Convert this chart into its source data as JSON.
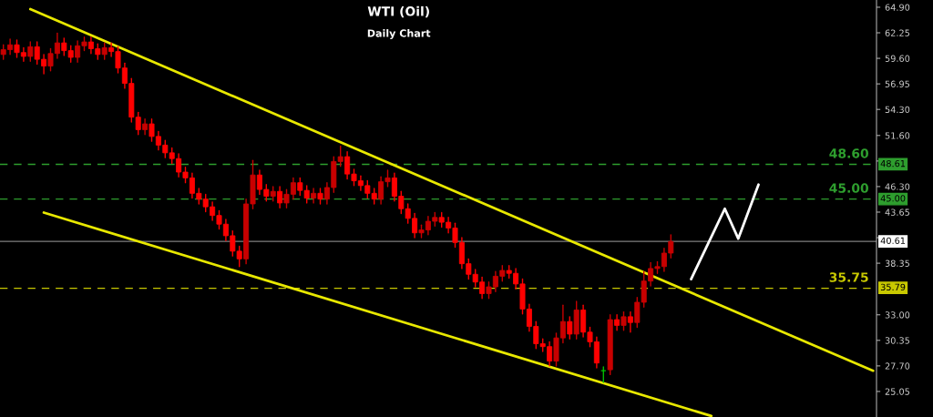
{
  "chart_data": {
    "type": "candlestick",
    "title": "WTI (Oil)",
    "subtitle": "Daily Chart",
    "categories": [
      null,
      null,
      null,
      null,
      null,
      null,
      null,
      null,
      null,
      null,
      null,
      null,
      null,
      null,
      null,
      null,
      null,
      null,
      null,
      null,
      null,
      null,
      null,
      null,
      null,
      null,
      null,
      null,
      null,
      null,
      null,
      null,
      null,
      null,
      null,
      null,
      null,
      null,
      null,
      null,
      null,
      null,
      null,
      null,
      null,
      null,
      null,
      null,
      null,
      null,
      null,
      null,
      null,
      null,
      null,
      null,
      null,
      null,
      null,
      null,
      null,
      null,
      null,
      null,
      null,
      null,
      null,
      null,
      null,
      null,
      null,
      null,
      null,
      null,
      null,
      null,
      null,
      null,
      null,
      null,
      null,
      null,
      null,
      null,
      null,
      null,
      null,
      null,
      null,
      null,
      null,
      null,
      null,
      null,
      null,
      null,
      null,
      null,
      null,
      null,
      null,
      null,
      null,
      null,
      null,
      null,
      null,
      null,
      null,
      null,
      null,
      null,
      null,
      null,
      null,
      null,
      null,
      null,
      null,
      null,
      null,
      null,
      null,
      null,
      null,
      null,
      null,
      null,
      null,
      null
    ],
    "ohlc": [
      [
        60.0,
        61.0,
        59.5,
        60.5
      ],
      [
        60.5,
        61.6,
        60.0,
        61.0
      ],
      [
        61.0,
        61.5,
        59.7,
        60.2
      ],
      [
        60.2,
        60.7,
        59.3,
        59.8
      ],
      [
        59.8,
        61.3,
        59.3,
        60.8
      ],
      [
        60.8,
        61.3,
        59.0,
        59.5
      ],
      [
        59.5,
        60.0,
        58.0,
        58.8
      ],
      [
        58.8,
        60.6,
        58.3,
        60.1
      ],
      [
        60.1,
        62.2,
        59.6,
        61.2
      ],
      [
        61.2,
        61.7,
        59.9,
        60.4
      ],
      [
        60.4,
        60.9,
        59.2,
        59.7
      ],
      [
        59.7,
        61.4,
        59.2,
        60.9
      ],
      [
        60.9,
        61.8,
        60.4,
        61.3
      ],
      [
        61.3,
        61.8,
        60.1,
        60.6
      ],
      [
        60.6,
        61.1,
        59.5,
        60.0
      ],
      [
        60.0,
        61.2,
        59.5,
        60.7
      ],
      [
        60.7,
        61.2,
        59.8,
        60.3
      ],
      [
        60.3,
        60.8,
        58.1,
        58.6
      ],
      [
        58.6,
        59.1,
        56.5,
        57.0
      ],
      [
        57.0,
        57.5,
        53.0,
        53.5
      ],
      [
        53.5,
        54.0,
        51.7,
        52.2
      ],
      [
        52.2,
        53.3,
        51.7,
        52.8
      ],
      [
        52.8,
        53.3,
        51.0,
        51.5
      ],
      [
        51.5,
        52.0,
        50.1,
        50.6
      ],
      [
        50.6,
        51.1,
        49.3,
        49.8
      ],
      [
        49.8,
        50.3,
        48.7,
        49.2
      ],
      [
        49.2,
        49.7,
        47.3,
        47.8
      ],
      [
        47.8,
        48.3,
        46.7,
        47.2
      ],
      [
        47.2,
        47.7,
        45.1,
        45.6
      ],
      [
        45.6,
        46.1,
        44.5,
        45.0
      ],
      [
        45.0,
        45.5,
        43.7,
        44.2
      ],
      [
        44.2,
        44.7,
        42.8,
        43.3
      ],
      [
        43.3,
        43.8,
        41.9,
        42.4
      ],
      [
        42.4,
        42.9,
        40.7,
        41.2
      ],
      [
        41.2,
        41.7,
        39.1,
        39.6
      ],
      [
        39.6,
        40.1,
        38.0,
        38.8
      ],
      [
        38.8,
        45.0,
        38.3,
        44.5
      ],
      [
        44.5,
        49.0,
        44.0,
        47.5
      ],
      [
        47.5,
        48.0,
        45.5,
        46.0
      ],
      [
        46.0,
        46.5,
        44.8,
        45.3
      ],
      [
        45.3,
        46.3,
        44.8,
        45.8
      ],
      [
        45.8,
        46.3,
        44.1,
        44.6
      ],
      [
        44.6,
        46.0,
        44.1,
        45.5
      ],
      [
        45.5,
        47.2,
        45.0,
        46.7
      ],
      [
        46.7,
        47.2,
        45.4,
        45.9
      ],
      [
        45.9,
        46.4,
        44.6,
        45.1
      ],
      [
        45.1,
        46.1,
        44.6,
        45.6
      ],
      [
        45.6,
        46.1,
        44.5,
        45.0
      ],
      [
        45.0,
        46.7,
        44.5,
        46.2
      ],
      [
        46.2,
        49.4,
        45.7,
        48.9
      ],
      [
        48.9,
        50.5,
        48.4,
        49.4
      ],
      [
        49.4,
        49.9,
        47.1,
        47.6
      ],
      [
        47.6,
        48.1,
        46.4,
        46.9
      ],
      [
        46.9,
        47.4,
        45.9,
        46.4
      ],
      [
        46.4,
        46.9,
        45.1,
        45.6
      ],
      [
        45.6,
        46.1,
        44.5,
        45.0
      ],
      [
        45.0,
        47.3,
        44.5,
        46.8
      ],
      [
        46.8,
        48.0,
        46.3,
        47.2
      ],
      [
        47.2,
        47.7,
        44.8,
        45.3
      ],
      [
        45.3,
        45.8,
        43.5,
        44.0
      ],
      [
        44.0,
        44.5,
        42.5,
        43.0
      ],
      [
        43.0,
        43.5,
        41.0,
        41.5
      ],
      [
        41.5,
        42.3,
        41.0,
        41.8
      ],
      [
        41.8,
        43.2,
        41.3,
        42.7
      ],
      [
        42.7,
        43.6,
        42.2,
        43.1
      ],
      [
        43.1,
        43.6,
        42.1,
        42.6
      ],
      [
        42.6,
        43.1,
        41.5,
        42.0
      ],
      [
        42.0,
        42.5,
        40.0,
        40.5
      ],
      [
        40.5,
        41.0,
        37.8,
        38.3
      ],
      [
        38.3,
        38.8,
        36.7,
        37.2
      ],
      [
        37.2,
        37.7,
        35.9,
        36.4
      ],
      [
        36.4,
        36.9,
        34.7,
        35.2
      ],
      [
        35.2,
        36.4,
        34.7,
        35.9
      ],
      [
        35.9,
        37.5,
        35.4,
        37.0
      ],
      [
        37.0,
        38.1,
        36.5,
        37.6
      ],
      [
        37.6,
        38.1,
        36.8,
        37.3
      ],
      [
        37.3,
        37.8,
        35.7,
        36.2
      ],
      [
        36.2,
        36.7,
        33.1,
        33.6
      ],
      [
        33.6,
        34.1,
        31.3,
        31.8
      ],
      [
        31.8,
        32.3,
        29.5,
        30.0
      ],
      [
        30.0,
        30.5,
        29.2,
        29.7
      ],
      [
        29.7,
        30.2,
        27.7,
        28.2
      ],
      [
        28.2,
        31.1,
        27.7,
        30.6
      ],
      [
        30.6,
        34.0,
        30.1,
        32.3
      ],
      [
        32.3,
        32.8,
        30.5,
        31.0
      ],
      [
        31.0,
        34.4,
        30.5,
        33.5
      ],
      [
        33.5,
        34.0,
        30.7,
        31.2
      ],
      [
        31.2,
        31.7,
        29.7,
        30.2
      ],
      [
        30.2,
        30.7,
        27.5,
        28.0
      ],
      [
        27.2,
        27.6,
        26.0,
        27.2
      ],
      [
        27.3,
        33.0,
        26.8,
        32.5
      ],
      [
        32.5,
        33.0,
        31.4,
        31.9
      ],
      [
        31.9,
        33.3,
        31.4,
        32.8
      ],
      [
        32.8,
        33.3,
        31.2,
        32.2
      ],
      [
        32.2,
        34.8,
        31.7,
        34.3
      ],
      [
        34.3,
        37.5,
        33.8,
        36.5
      ],
      [
        36.5,
        38.4,
        36.0,
        37.8
      ],
      [
        37.8,
        38.5,
        37.3,
        38.0
      ],
      [
        38.0,
        39.9,
        37.5,
        39.4
      ],
      [
        39.4,
        41.3,
        38.9,
        40.6
      ],
      null,
      null,
      null,
      null,
      null,
      null,
      null,
      null,
      null,
      null,
      null,
      null,
      null,
      null,
      null,
      null,
      null,
      null,
      null,
      null,
      null,
      null,
      null,
      null,
      null,
      null,
      null,
      null,
      null,
      null
    ],
    "colors": [
      "#c80000",
      "#c80000",
      "#ff0000",
      "#ff0000",
      "#c80000",
      "#ff0000",
      "#ff0000",
      "#c80000",
      "#c80000",
      "#ff0000",
      "#ff0000",
      "#c80000",
      "#c80000",
      "#ff0000",
      "#ff0000",
      "#c80000",
      "#ff0000",
      "#ff0000",
      "#ff0000",
      "#ff0000",
      "#ff0000",
      "#c80000",
      "#ff0000",
      "#ff0000",
      "#ff0000",
      "#ff0000",
      "#ff0000",
      "#ff0000",
      "#ff0000",
      "#ff0000",
      "#ff0000",
      "#ff0000",
      "#ff0000",
      "#ff0000",
      "#ff0000",
      "#ff0000",
      "#c80000",
      "#c80000",
      "#ff0000",
      "#ff0000",
      "#c80000",
      "#ff0000",
      "#c80000",
      "#c80000",
      "#ff0000",
      "#ff0000",
      "#c80000",
      "#ff0000",
      "#c80000",
      "#c80000",
      "#c80000",
      "#ff0000",
      "#ff0000",
      "#ff0000",
      "#ff0000",
      "#ff0000",
      "#c80000",
      "#c80000",
      "#ff0000",
      "#ff0000",
      "#ff0000",
      "#ff0000",
      "#c80000",
      "#c80000",
      "#c80000",
      "#ff0000",
      "#ff0000",
      "#ff0000",
      "#ff0000",
      "#ff0000",
      "#ff0000",
      "#ff0000",
      "#c80000",
      "#c80000",
      "#c80000",
      "#ff0000",
      "#ff0000",
      "#ff0000",
      "#ff0000",
      "#ff0000",
      "#ff0000",
      "#ff0000",
      "#c80000",
      "#c80000",
      "#ff0000",
      "#c80000",
      "#ff0000",
      "#ff0000",
      "#ff0000",
      "#00c000",
      "#c80000",
      "#ff0000",
      "#c80000",
      "#ff0000",
      "#c80000",
      "#c80000",
      "#c80000",
      "#c80000",
      "#c80000",
      "#c80000",
      null,
      null,
      null,
      null,
      null,
      null,
      null,
      null,
      null,
      null,
      null,
      null,
      null,
      null,
      null,
      null,
      null,
      null,
      null,
      null,
      null,
      null,
      null,
      null,
      null,
      null,
      null,
      null,
      null,
      null
    ],
    "series": [
      {
        "type": "line",
        "color": "#e8e800",
        "values": [
          null,
          null,
          null,
          null,
          64.7,
          null,
          null,
          null,
          null,
          null,
          null,
          null,
          null,
          null,
          null,
          null,
          null,
          null,
          null,
          null,
          null,
          null,
          null,
          null,
          null,
          null,
          null,
          null,
          null,
          null,
          null,
          null,
          null,
          null,
          null,
          null,
          null,
          null,
          null,
          null,
          null,
          null,
          null,
          null,
          null,
          null,
          null,
          null,
          null,
          null,
          null,
          null,
          null,
          null,
          null,
          null,
          null,
          null,
          null,
          null,
          null,
          null,
          null,
          null,
          null,
          null,
          null,
          null,
          null,
          null,
          null,
          null,
          null,
          null,
          null,
          null,
          null,
          null,
          null,
          null,
          null,
          null,
          null,
          null,
          null,
          null,
          null,
          null,
          null,
          null,
          null,
          null,
          null,
          null,
          null,
          null,
          null,
          null,
          null,
          null,
          null,
          null,
          null,
          null,
          null,
          null,
          null,
          null,
          null,
          null,
          null,
          null,
          null,
          null,
          null,
          null,
          null,
          null,
          null,
          null,
          null,
          null,
          null,
          null,
          null,
          null,
          null,
          null,
          null,
          27.2
        ]
      },
      {
        "type": "line",
        "color": "#e8e800",
        "values": [
          null,
          null,
          null,
          null,
          null,
          null,
          43.6,
          null,
          null,
          null,
          null,
          null,
          null,
          null,
          null,
          null,
          null,
          null,
          null,
          null,
          null,
          null,
          null,
          null,
          null,
          null,
          null,
          null,
          null,
          null,
          null,
          null,
          null,
          null,
          null,
          null,
          null,
          null,
          null,
          null,
          null,
          null,
          null,
          null,
          null,
          null,
          null,
          null,
          null,
          null,
          null,
          null,
          null,
          null,
          null,
          null,
          null,
          null,
          null,
          null,
          null,
          null,
          null,
          null,
          null,
          null,
          null,
          null,
          null,
          null,
          null,
          null,
          null,
          null,
          null,
          null,
          null,
          null,
          null,
          null,
          null,
          null,
          null,
          null,
          null,
          null,
          null,
          null,
          null,
          null,
          null,
          null,
          null,
          null,
          null,
          null,
          null,
          null,
          null,
          null,
          null,
          null,
          null,
          null,
          null,
          22.5,
          null,
          null,
          null,
          null,
          null,
          null,
          null,
          null,
          null,
          null,
          null,
          null,
          null,
          null,
          null,
          null,
          null,
          null,
          null,
          null,
          null,
          null,
          null,
          null
        ]
      },
      {
        "type": "line",
        "color": "#ffffff",
        "values": [
          null,
          null,
          null,
          null,
          null,
          null,
          null,
          null,
          null,
          null,
          null,
          null,
          null,
          null,
          null,
          null,
          null,
          null,
          null,
          null,
          null,
          null,
          null,
          null,
          null,
          null,
          null,
          null,
          null,
          null,
          null,
          null,
          null,
          null,
          null,
          null,
          null,
          null,
          null,
          null,
          null,
          null,
          null,
          null,
          null,
          null,
          null,
          null,
          null,
          null,
          null,
          null,
          null,
          null,
          null,
          null,
          null,
          null,
          null,
          null,
          null,
          null,
          null,
          null,
          null,
          null,
          null,
          null,
          null,
          null,
          null,
          null,
          null,
          null,
          null,
          null,
          null,
          null,
          null,
          null,
          null,
          null,
          null,
          null,
          null,
          null,
          null,
          null,
          null,
          null,
          null,
          null,
          null,
          null,
          null,
          null,
          null,
          null,
          null,
          null,
          null,
          null,
          36.7,
          null,
          null,
          null,
          null,
          44.0,
          null,
          40.9,
          null,
          null,
          46.5,
          null,
          null,
          null,
          null,
          null,
          null,
          null,
          null,
          null,
          null,
          null,
          null,
          null,
          null,
          null,
          null,
          null
        ]
      }
    ],
    "ylim": [
      22.4,
      65.65
    ],
    "yticks": [
      {
        "value": 64.9,
        "label": "64.90"
      },
      62.25,
      {
        "value": 59.6,
        "label": "59.60"
      },
      56.95,
      {
        "value": 54.3,
        "label": "54.30"
      },
      {
        "value": 51.6,
        "label": "51.60"
      },
      {
        "value": 48.95,
        "label": null
      },
      {
        "value": 46.3,
        "label": "46.30"
      },
      43.65,
      {
        "value": 41.0,
        "label": null
      },
      38.35,
      {
        "value": 33.0,
        "label": "33.00"
      },
      30.35,
      {
        "value": 27.7,
        "label": "27.70"
      },
      25.05
    ],
    "tick_labels": "y",
    "grid": false,
    "ref_lines": [
      {
        "axis": "y",
        "value": 48.6,
        "label": "48.60",
        "color": "#2e9e2e",
        "line_style": "dashed"
      },
      {
        "axis": "y",
        "value": 45.0,
        "label": "45.00",
        "color": "#2e9e2e",
        "line_style": "dashed"
      },
      {
        "axis": "y",
        "value": 40.61,
        "label": "40.61",
        "color": "#7f7f7f",
        "line_style": "solid"
      },
      {
        "axis": "y",
        "value": 35.75,
        "label": "35.75",
        "color": "#c8c800",
        "line_style": "dashed"
      }
    ],
    "annotations": [
      {
        "text": "48.61",
        "y": 48.61
      },
      {
        "text": "45.00",
        "y": 45.0
      },
      {
        "text": "35.79",
        "y": 35.79
      }
    ]
  }
}
